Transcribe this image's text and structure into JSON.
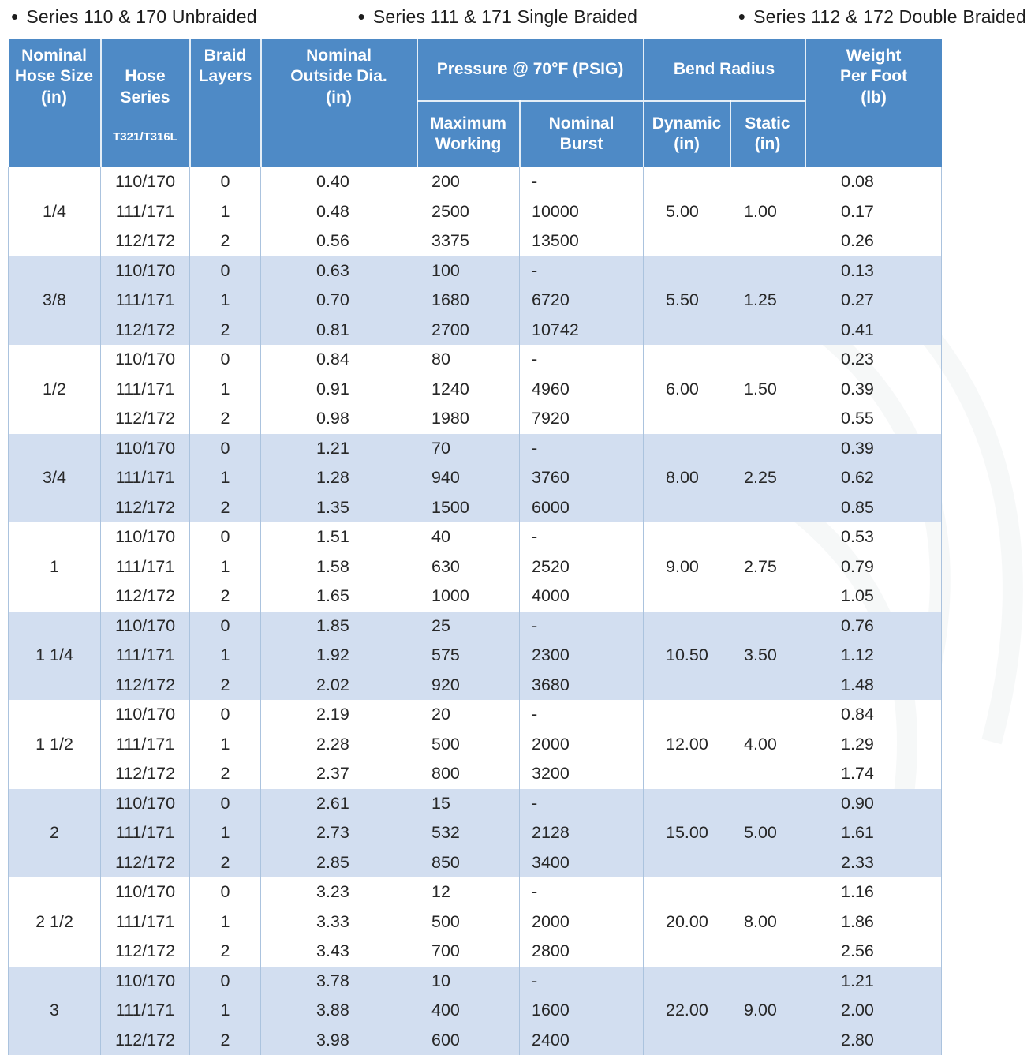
{
  "colors": {
    "header_blue": "#4e8ac6",
    "band_blue": "#d2def0",
    "grid_line": "#abc3de",
    "header_text": "#ffffff",
    "body_text": "#272727"
  },
  "legend": {
    "bullet": "•",
    "items": [
      {
        "label": "Series 110 & 170 Unbraided"
      },
      {
        "label": "Series 111 & 171 Single Braided"
      },
      {
        "label": "Series 112 & 172 Double Braided"
      }
    ]
  },
  "table": {
    "columns": {
      "size": "Nominal\nHose Size\n(in)",
      "series_main": "Hose\nSeries",
      "series_sub": "T321/T316L",
      "braid": "Braid\nLayers",
      "od": "Nominal\nOutside Dia.\n(in)",
      "pressure_group": "Pressure @ 70°F (PSIG)",
      "max_working": "Maximum\nWorking",
      "burst": "Nominal\nBurst",
      "bend_group": "Bend Radius",
      "dynamic": "Dynamic\n(in)",
      "static": "Static\n(in)",
      "weight": "Weight\nPer Foot\n(lb)"
    },
    "groups": [
      {
        "size": "1/4",
        "dynamic": "5.00",
        "static": "1.00",
        "rows": [
          {
            "series": "110/170",
            "braid": "0",
            "od": "0.40",
            "max_working": "200",
            "burst": "-",
            "weight": "0.08"
          },
          {
            "series": "111/171",
            "braid": "1",
            "od": "0.48",
            "max_working": "2500",
            "burst": "10000",
            "weight": "0.17"
          },
          {
            "series": "112/172",
            "braid": "2",
            "od": "0.56",
            "max_working": "3375",
            "burst": "13500",
            "weight": "0.26"
          }
        ]
      },
      {
        "size": "3/8",
        "dynamic": "5.50",
        "static": "1.25",
        "rows": [
          {
            "series": "110/170",
            "braid": "0",
            "od": "0.63",
            "max_working": "100",
            "burst": "-",
            "weight": "0.13"
          },
          {
            "series": "111/171",
            "braid": "1",
            "od": "0.70",
            "max_working": "1680",
            "burst": "6720",
            "weight": "0.27"
          },
          {
            "series": "112/172",
            "braid": "2",
            "od": "0.81",
            "max_working": "2700",
            "burst": "10742",
            "weight": "0.41"
          }
        ]
      },
      {
        "size": "1/2",
        "dynamic": "6.00",
        "static": "1.50",
        "rows": [
          {
            "series": "110/170",
            "braid": "0",
            "od": "0.84",
            "max_working": "80",
            "burst": "-",
            "weight": "0.23"
          },
          {
            "series": "111/171",
            "braid": "1",
            "od": "0.91",
            "max_working": "1240",
            "burst": "4960",
            "weight": "0.39"
          },
          {
            "series": "112/172",
            "braid": "2",
            "od": "0.98",
            "max_working": "1980",
            "burst": "7920",
            "weight": "0.55"
          }
        ]
      },
      {
        "size": "3/4",
        "dynamic": "8.00",
        "static": "2.25",
        "rows": [
          {
            "series": "110/170",
            "braid": "0",
            "od": "1.21",
            "max_working": "70",
            "burst": "-",
            "weight": "0.39"
          },
          {
            "series": "111/171",
            "braid": "1",
            "od": "1.28",
            "max_working": "940",
            "burst": "3760",
            "weight": "0.62"
          },
          {
            "series": "112/172",
            "braid": "2",
            "od": "1.35",
            "max_working": "1500",
            "burst": "6000",
            "weight": "0.85"
          }
        ]
      },
      {
        "size": "1",
        "dynamic": "9.00",
        "static": "2.75",
        "rows": [
          {
            "series": "110/170",
            "braid": "0",
            "od": "1.51",
            "max_working": "40",
            "burst": "-",
            "weight": "0.53"
          },
          {
            "series": "111/171",
            "braid": "1",
            "od": "1.58",
            "max_working": "630",
            "burst": "2520",
            "weight": "0.79"
          },
          {
            "series": "112/172",
            "braid": "2",
            "od": "1.65",
            "max_working": "1000",
            "burst": "4000",
            "weight": "1.05"
          }
        ]
      },
      {
        "size": "1 1/4",
        "dynamic": "10.50",
        "static": "3.50",
        "rows": [
          {
            "series": "110/170",
            "braid": "0",
            "od": "1.85",
            "max_working": "25",
            "burst": "-",
            "weight": "0.76"
          },
          {
            "series": "111/171",
            "braid": "1",
            "od": "1.92",
            "max_working": "575",
            "burst": "2300",
            "weight": "1.12"
          },
          {
            "series": "112/172",
            "braid": "2",
            "od": "2.02",
            "max_working": "920",
            "burst": "3680",
            "weight": "1.48"
          }
        ]
      },
      {
        "size": "1 1/2",
        "dynamic": "12.00",
        "static": "4.00",
        "rows": [
          {
            "series": "110/170",
            "braid": "0",
            "od": "2.19",
            "max_working": "20",
            "burst": "-",
            "weight": "0.84"
          },
          {
            "series": "111/171",
            "braid": "1",
            "od": "2.28",
            "max_working": "500",
            "burst": "2000",
            "weight": "1.29"
          },
          {
            "series": "112/172",
            "braid": "2",
            "od": "2.37",
            "max_working": "800",
            "burst": "3200",
            "weight": "1.74"
          }
        ]
      },
      {
        "size": "2",
        "dynamic": "15.00",
        "static": "5.00",
        "rows": [
          {
            "series": "110/170",
            "braid": "0",
            "od": "2.61",
            "max_working": "15",
            "burst": "-",
            "weight": "0.90"
          },
          {
            "series": "111/171",
            "braid": "1",
            "od": "2.73",
            "max_working": "532",
            "burst": "2128",
            "weight": "1.61"
          },
          {
            "series": "112/172",
            "braid": "2",
            "od": "2.85",
            "max_working": "850",
            "burst": "3400",
            "weight": "2.33"
          }
        ]
      },
      {
        "size": "2 1/2",
        "dynamic": "20.00",
        "static": "8.00",
        "rows": [
          {
            "series": "110/170",
            "braid": "0",
            "od": "3.23",
            "max_working": "12",
            "burst": "-",
            "weight": "1.16"
          },
          {
            "series": "111/171",
            "braid": "1",
            "od": "3.33",
            "max_working": "500",
            "burst": "2000",
            "weight": "1.86"
          },
          {
            "series": "112/172",
            "braid": "2",
            "od": "3.43",
            "max_working": "700",
            "burst": "2800",
            "weight": "2.56"
          }
        ]
      },
      {
        "size": "3",
        "dynamic": "22.00",
        "static": "9.00",
        "rows": [
          {
            "series": "110/170",
            "braid": "0",
            "od": "3.78",
            "max_working": "10",
            "burst": "-",
            "weight": "1.21"
          },
          {
            "series": "111/171",
            "braid": "1",
            "od": "3.88",
            "max_working": "400",
            "burst": "1600",
            "weight": "2.00"
          },
          {
            "series": "112/172",
            "braid": "2",
            "od": "3.98",
            "max_working": "600",
            "burst": "2400",
            "weight": "2.80"
          }
        ]
      }
    ]
  }
}
